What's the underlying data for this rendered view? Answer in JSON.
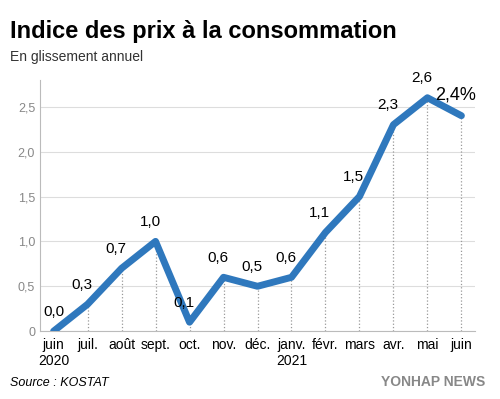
{
  "chart_data": {
    "type": "line",
    "title": "Indice des prix à la consommation",
    "subtitle": "En glissement annuel",
    "source": "Source : KOSTAT",
    "credit": "YONHAP NEWS",
    "categories": [
      "juin\n2020",
      "juil.",
      "août",
      "sept.",
      "oct.",
      "nov.",
      "déc.",
      "janv.\n2021",
      "févr.",
      "mars",
      "avr.",
      "mai",
      "juin"
    ],
    "values": [
      0.0,
      0.3,
      0.7,
      1.0,
      0.1,
      0.6,
      0.5,
      0.6,
      1.1,
      1.5,
      2.3,
      2.6,
      2.4
    ],
    "value_labels": [
      "0,0",
      "0,3",
      "0,7",
      "1,0",
      "0,1",
      "0,6",
      "0,5",
      "0,6",
      "1,1",
      "1,5",
      "2,3",
      "2,6",
      "2,4%"
    ],
    "data_labels": true,
    "color": "#2f78bd",
    "ylim": [
      0,
      2.8
    ],
    "yticks": [
      0,
      {
        "value": 0.5,
        "label": "0,5"
      },
      {
        "value": 1.0,
        "label": "1,0"
      },
      {
        "value": 1.5,
        "label": "1,5"
      },
      {
        "value": 2.0,
        "label": "2,0"
      },
      {
        "value": 2.5,
        "label": "2,5"
      }
    ],
    "grid": true
  }
}
